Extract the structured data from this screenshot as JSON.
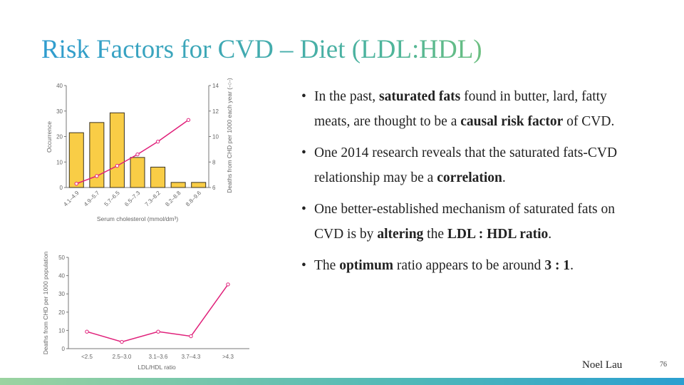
{
  "title": "Risk Factors for CVD – Diet (LDL:HDL)",
  "bullets": [
    [
      {
        "t": "In the past, "
      },
      {
        "t": "saturated fats",
        "b": true
      },
      {
        "t": " found in butter, lard, fatty meats, are thought to be a "
      },
      {
        "t": "causal risk factor",
        "b": true
      },
      {
        "t": " of CVD."
      }
    ],
    [
      {
        "t": "One 2014 research reveals that the saturated fats-CVD relationship may be a "
      },
      {
        "t": "correlation",
        "b": true
      },
      {
        "t": "."
      }
    ],
    [
      {
        "t": "One better-established mechanism of  saturated fats on CVD is by "
      },
      {
        "t": "altering",
        "b": true
      },
      {
        "t": " the "
      },
      {
        "t": "LDL : HDL ratio",
        "b": true
      },
      {
        "t": "."
      }
    ],
    [
      {
        "t": "The "
      },
      {
        "t": "optimum",
        "b": true
      },
      {
        "t": " ratio appears to be around "
      },
      {
        "t": "3 : 1",
        "b": true
      },
      {
        "t": "."
      }
    ]
  ],
  "author": "Noel Lau",
  "page_number": "76",
  "colors": {
    "bar": "#f9cd46",
    "line": "#e0207a",
    "title_start": "#2f9ccf",
    "title_end": "#6cbf80"
  },
  "chart_data": [
    {
      "type": "bar+line",
      "categories": [
        "4.1–4.9",
        "4.9–5.7",
        "5.7–6.5",
        "6.5–7.3",
        "7.3–8.2",
        "8.2–8.8",
        "8.8–9.6"
      ],
      "bar_series": {
        "values": [
          21.5,
          25.5,
          29.3,
          11.8,
          8,
          2,
          2
        ]
      },
      "line_series": {
        "x_index": [
          0,
          1,
          2,
          3,
          4,
          5.5
        ],
        "values": [
          6.3,
          6.9,
          7.7,
          8.6,
          9.6,
          11.3
        ]
      },
      "xlabel": "Serum cholesterol (mmol/dm³)",
      "ylabel": "Occurrence",
      "ylim": [
        0,
        40
      ],
      "yticks": [
        0,
        10,
        20,
        30,
        40
      ],
      "y2label": "Deaths from CHD per 1000 each year (-○-)",
      "y2lim": [
        6,
        14
      ],
      "y2ticks": [
        6,
        8,
        10,
        12,
        14
      ],
      "grid": false
    },
    {
      "type": "line",
      "categories": [
        "<2.5",
        "2.5–3.0",
        "3.1–3.6",
        "3.7–4.3",
        ">4.3"
      ],
      "values": [
        9.3,
        3.7,
        9.3,
        6.8,
        35.2
      ],
      "xlabel": "LDL/HDL ratio",
      "ylabel": "Deaths from CHD per 1000 population",
      "ylim": [
        0,
        50
      ],
      "yticks": [
        0,
        10,
        20,
        30,
        40,
        50
      ],
      "grid": false
    }
  ]
}
